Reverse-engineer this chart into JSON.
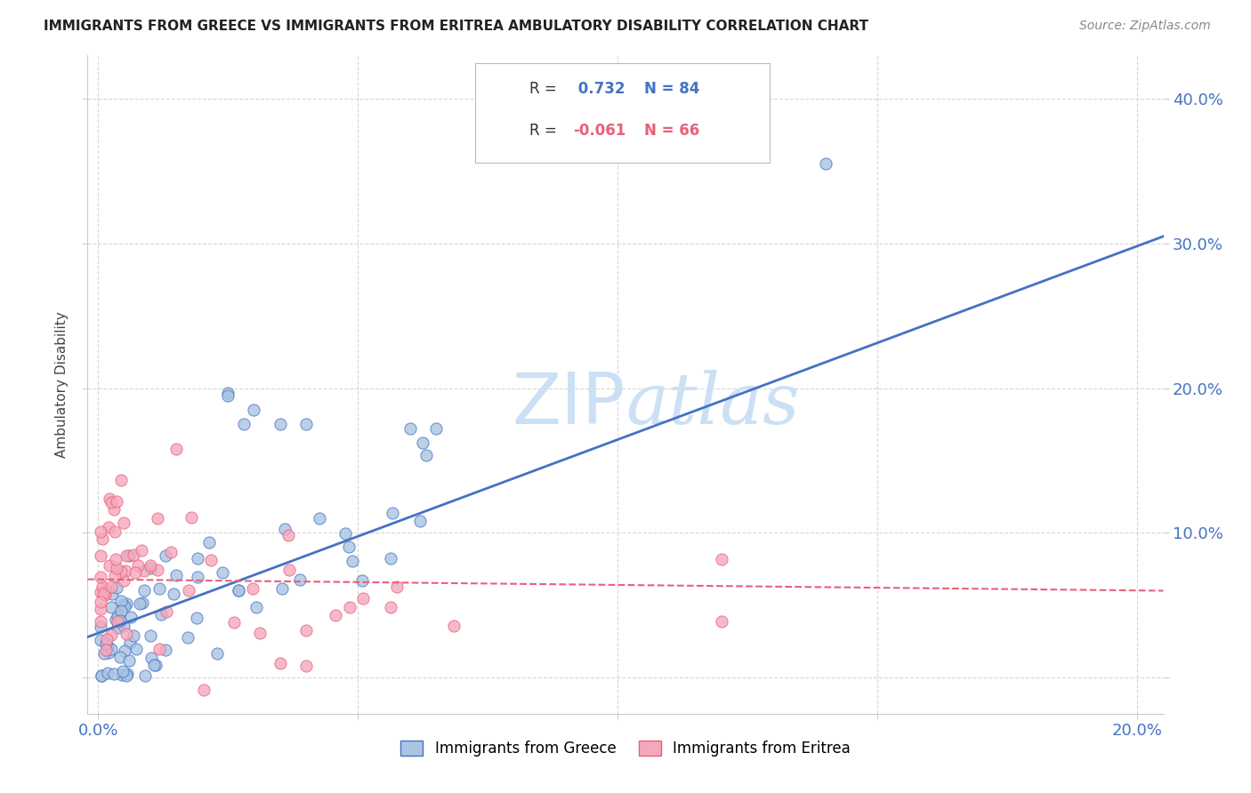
{
  "title": "IMMIGRANTS FROM GREECE VS IMMIGRANTS FROM ERITREA AMBULATORY DISABILITY CORRELATION CHART",
  "source": "Source: ZipAtlas.com",
  "ylabel": "Ambulatory Disability",
  "xlim": [
    -0.002,
    0.205
  ],
  "ylim": [
    -0.025,
    0.43
  ],
  "x_ticks": [
    0.0,
    0.05,
    0.1,
    0.15,
    0.2
  ],
  "y_ticks": [
    0.0,
    0.1,
    0.2,
    0.3,
    0.4
  ],
  "greece_R": 0.732,
  "greece_N": 84,
  "eritrea_R": -0.061,
  "eritrea_N": 66,
  "greece_color": "#aac4e2",
  "eritrea_color": "#f5a8bc",
  "greece_line_color": "#4472c4",
  "eritrea_line_color": "#e8607a",
  "greece_trend": [
    0.028,
    0.305
  ],
  "eritrea_trend": [
    0.068,
    0.06
  ],
  "watermark_color": "#cce0f5",
  "background_color": "#ffffff",
  "grid_color": "#cccccc",
  "axis_color": "#4472c4",
  "tick_label_fontsize": 13,
  "title_fontsize": 11,
  "source_fontsize": 10
}
